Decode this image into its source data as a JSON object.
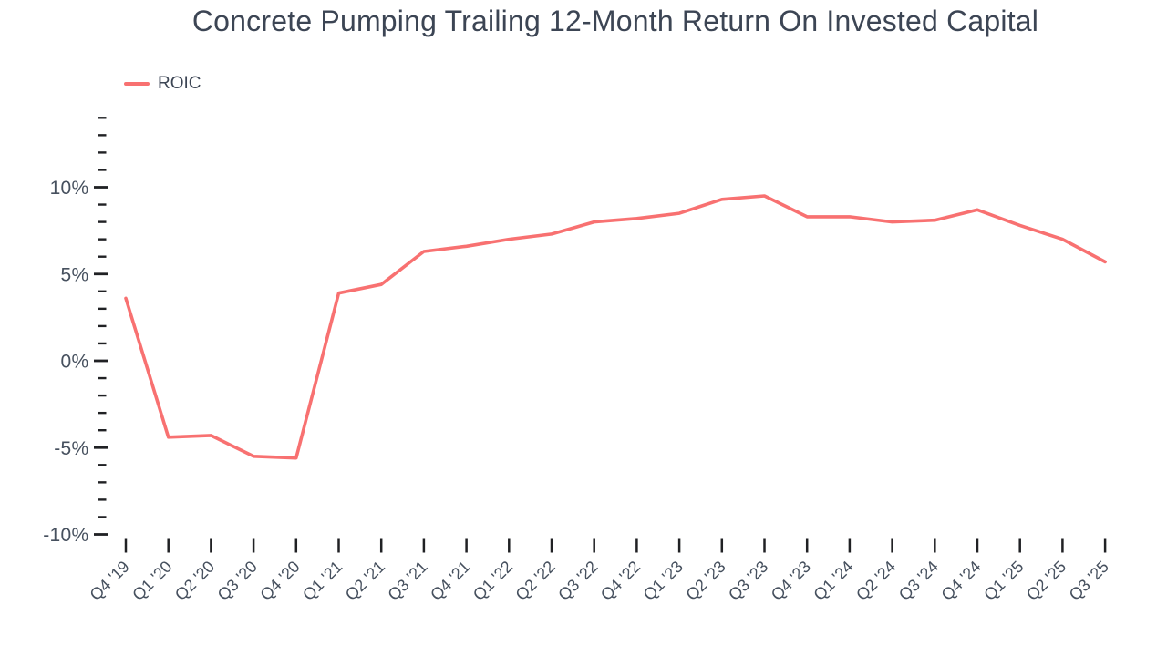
{
  "page": {
    "background_color": "#ffffff",
    "text_color": "#3c4554"
  },
  "chart_data": {
    "type": "line",
    "title": "Concrete Pumping Trailing 12-Month Return On Invested Capital",
    "xlabel": "",
    "ylabel": "",
    "grid": false,
    "legend_position": "top-left",
    "categories": [
      "Q4 '19",
      "Q1 '20",
      "Q2 '20",
      "Q3 '20",
      "Q4 '20",
      "Q1 '21",
      "Q2 '21",
      "Q3 '21",
      "Q4 '21",
      "Q1 '22",
      "Q2 '22",
      "Q3 '22",
      "Q4 '22",
      "Q1 '23",
      "Q2 '23",
      "Q3 '23",
      "Q4 '23",
      "Q1 '24",
      "Q2 '24",
      "Q3 '24",
      "Q4 '24",
      "Q1 '25",
      "Q2 '25",
      "Q3 '25"
    ],
    "series": [
      {
        "name": "ROIC",
        "color": "#f87171",
        "unit": "%",
        "values": [
          3.6,
          -4.4,
          -4.3,
          -5.5,
          -5.6,
          3.9,
          4.4,
          6.3,
          6.6,
          7.0,
          7.3,
          8.0,
          8.2,
          8.5,
          9.3,
          9.5,
          8.3,
          8.3,
          8.0,
          8.1,
          8.7,
          7.8,
          7.0,
          5.7
        ]
      }
    ],
    "ylim": [
      -10,
      14
    ],
    "y_minor_tick_step": 1,
    "y_major_ticks": [
      {
        "label": "10%",
        "value": 10
      },
      {
        "label": "5%",
        "value": 5
      },
      {
        "label": "0%",
        "value": 0
      },
      {
        "label": "-5%",
        "value": -5
      },
      {
        "label": "-10%",
        "value": -10
      }
    ],
    "tick_color": "#202124",
    "axis_label_color": "#46505e"
  }
}
